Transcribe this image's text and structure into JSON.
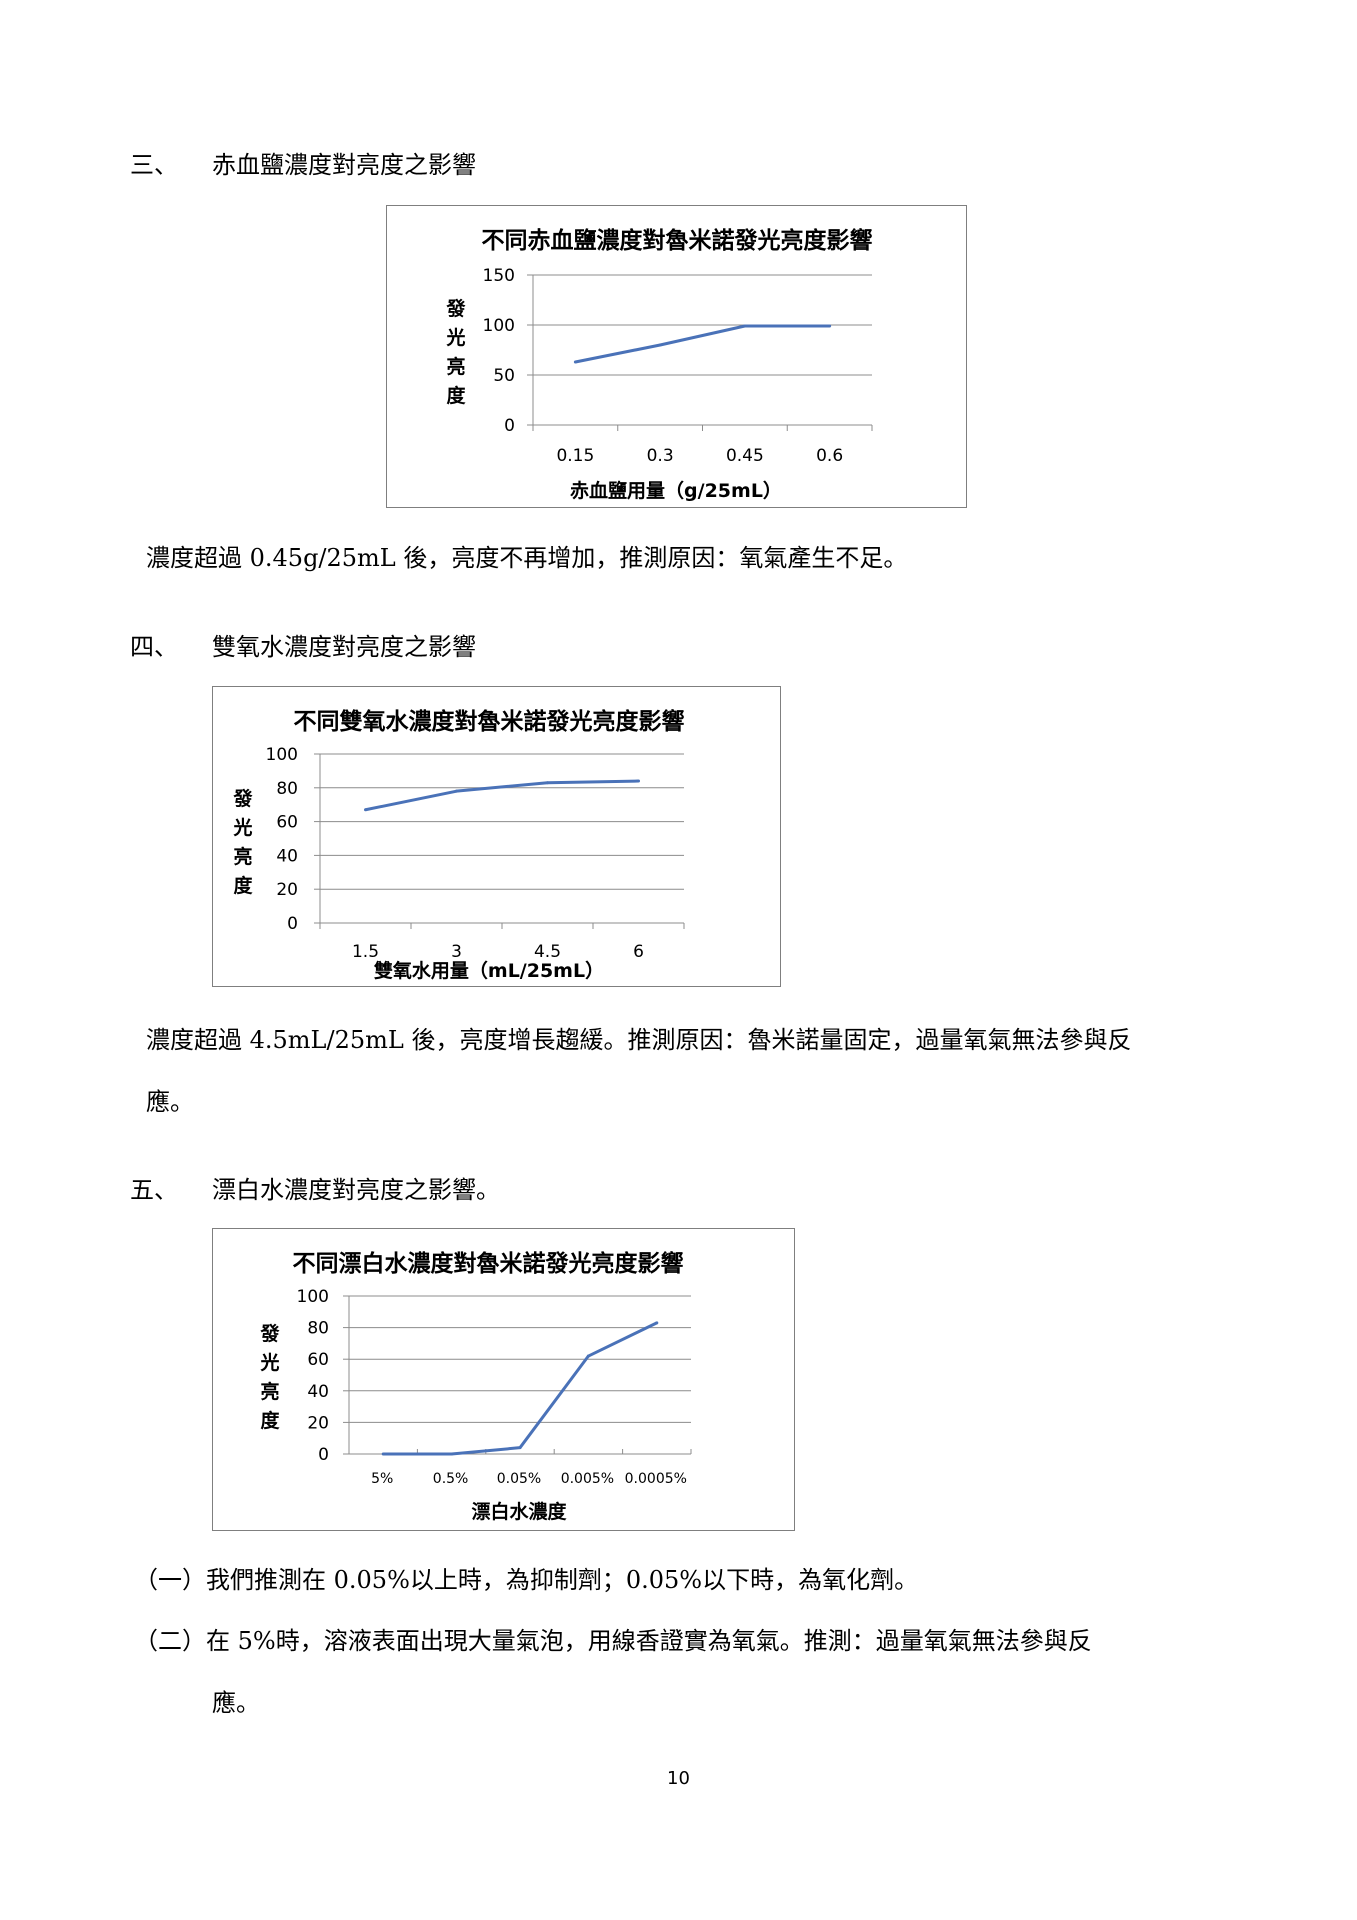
{
  "sections": [
    {
      "number": "三、",
      "title": "赤血鹽濃度對亮度之影響"
    },
    {
      "number": "四、",
      "title": "雙氧水濃度對亮度之影響"
    },
    {
      "number": "五、",
      "title": "漂白水濃度對亮度之影響。"
    }
  ],
  "paragraphs": {
    "p1": "濃度超過 0.45g/25mL 後，亮度不再增加，推測原因：氧氣產生不足。",
    "p2_line1": "濃度超過 4.5mL/25mL 後，亮度增長趨緩。推測原因：魯米諾量固定，過量氧氣無法參與反",
    "p2_line2": "應。",
    "p3_line1": "（一）我們推測在 0.05%以上時，為抑制劑；0.05%以下時，為氧化劑。",
    "p3_line2": "（二）在 5%時，溶液表面出現大量氣泡，用線香證實為氧氣。推測：過量氧氣無法參與反",
    "p3_line3": "應。"
  },
  "page_number": "10",
  "chart_data": [
    {
      "type": "line",
      "title": "不同赤血鹽濃度對魯米諾發光亮度影響",
      "xlabel": "赤血鹽用量（g/25mL）",
      "ylabel": "發光亮度",
      "categories": [
        "0.15",
        "0.3",
        "0.45",
        "0.6"
      ],
      "values": [
        63,
        80,
        99,
        99
      ],
      "ylim": [
        0,
        150
      ],
      "yticks": [
        0,
        50,
        100,
        150
      ],
      "grid": true,
      "legend": "none",
      "color": "#4a72b8"
    },
    {
      "type": "line",
      "title": "不同雙氧水濃度對魯米諾發光亮度影響",
      "xlabel": "雙氧水用量（mL/25mL）",
      "ylabel": "發光亮度",
      "categories": [
        "1.5",
        "3",
        "4.5",
        "6"
      ],
      "values": [
        67,
        78,
        83,
        84
      ],
      "ylim": [
        0,
        100
      ],
      "yticks": [
        0,
        20,
        40,
        60,
        80,
        100
      ],
      "grid": true,
      "legend": "none",
      "color": "#4a72b8"
    },
    {
      "type": "line",
      "title": "不同漂白水濃度對魯米諾發光亮度影響",
      "xlabel": "漂白水濃度",
      "ylabel": "發光亮度",
      "categories": [
        "5%",
        "0.5%",
        "0.05%",
        "0.005%",
        "0.0005%"
      ],
      "values": [
        0,
        0,
        4,
        62,
        83
      ],
      "ylim": [
        0,
        100
      ],
      "yticks": [
        0,
        20,
        40,
        60,
        80,
        100
      ],
      "grid": true,
      "legend": "none",
      "color": "#4a72b8"
    }
  ]
}
